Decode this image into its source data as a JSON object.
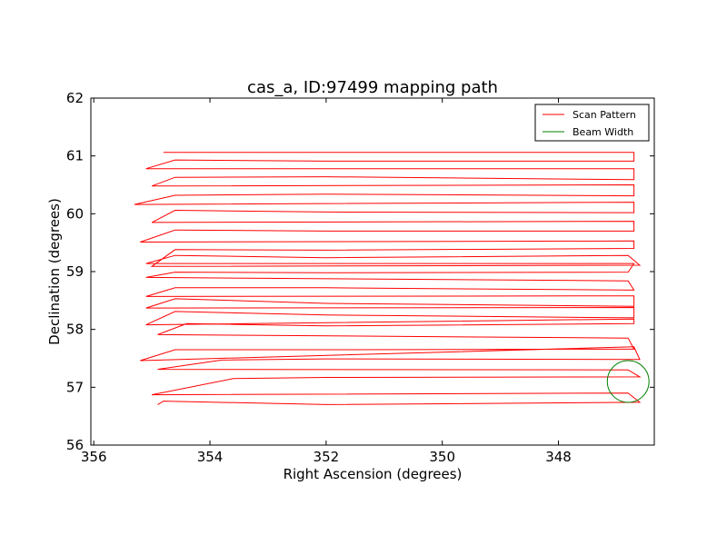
{
  "chart_data": {
    "type": "line",
    "title": "cas_a, ID:97499 mapping path",
    "xlabel": "Right Ascension (degrees)",
    "ylabel": "Declination (degrees)",
    "xlim": [
      356.05,
      346.35
    ],
    "ylim": [
      56,
      62
    ],
    "x_ticks": [
      "356",
      "354",
      "352",
      "350",
      "348"
    ],
    "x_tick_values": [
      356,
      354,
      352,
      350,
      348
    ],
    "y_ticks": [
      "56",
      "57",
      "58",
      "59",
      "60",
      "61",
      "62"
    ],
    "y_tick_values": [
      56,
      57,
      58,
      59,
      60,
      61,
      62
    ],
    "grid": false,
    "legend_position": "top-right",
    "legend": [
      {
        "label": "Scan Pattern",
        "color": "#ff0000"
      },
      {
        "label": "Beam Width",
        "color": "#008000"
      }
    ],
    "series": [
      {
        "name": "Scan Pattern",
        "color": "#ff0000",
        "points": [
          [
            354.9,
            56.7
          ],
          [
            354.8,
            56.76
          ],
          [
            352.0,
            56.7
          ],
          [
            346.6,
            56.74
          ],
          [
            346.8,
            56.9
          ],
          [
            355.0,
            56.87
          ],
          [
            353.6,
            57.15
          ],
          [
            352.0,
            57.17
          ],
          [
            346.6,
            57.18
          ],
          [
            346.8,
            57.3
          ],
          [
            354.9,
            57.31
          ],
          [
            353.8,
            57.47
          ],
          [
            352.0,
            57.49
          ],
          [
            346.6,
            57.48
          ],
          [
            346.7,
            57.7
          ],
          [
            355.2,
            57.46
          ],
          [
            354.6,
            57.65
          ],
          [
            352.0,
            57.65
          ],
          [
            346.7,
            57.66
          ],
          [
            346.8,
            57.85
          ],
          [
            354.9,
            57.91
          ],
          [
            354.4,
            58.1
          ],
          [
            352.0,
            58.06
          ],
          [
            346.7,
            58.1
          ],
          [
            346.7,
            58.18
          ],
          [
            355.1,
            58.08
          ],
          [
            354.6,
            58.31
          ],
          [
            352.0,
            58.25
          ],
          [
            346.7,
            58.2
          ],
          [
            346.7,
            58.38
          ],
          [
            355.1,
            58.37
          ],
          [
            354.6,
            58.53
          ],
          [
            352.0,
            58.45
          ],
          [
            346.7,
            58.4
          ],
          [
            346.7,
            58.58
          ],
          [
            355.1,
            58.57
          ],
          [
            354.6,
            58.72
          ],
          [
            352.0,
            58.72
          ],
          [
            346.7,
            58.68
          ],
          [
            346.8,
            58.84
          ],
          [
            355.1,
            58.9
          ],
          [
            354.6,
            58.99
          ],
          [
            352.0,
            58.98
          ],
          [
            346.8,
            58.99
          ],
          [
            346.7,
            59.14
          ],
          [
            355.1,
            59.14
          ],
          [
            354.6,
            59.28
          ],
          [
            352.0,
            59.24
          ],
          [
            346.8,
            59.28
          ],
          [
            346.6,
            59.11
          ],
          [
            355.0,
            59.09
          ],
          [
            354.6,
            59.38
          ],
          [
            352.0,
            59.37
          ],
          [
            346.7,
            59.4
          ],
          [
            346.7,
            59.53
          ],
          [
            355.2,
            59.51
          ],
          [
            354.6,
            59.72
          ],
          [
            352.0,
            59.7
          ],
          [
            346.7,
            59.7
          ],
          [
            346.7,
            59.87
          ],
          [
            355.0,
            59.85
          ],
          [
            354.6,
            60.06
          ],
          [
            352.0,
            60.03
          ],
          [
            346.7,
            60.02
          ],
          [
            346.7,
            60.2
          ],
          [
            355.3,
            60.16
          ],
          [
            354.6,
            60.32
          ],
          [
            352.0,
            60.34
          ],
          [
            346.7,
            60.31
          ],
          [
            346.7,
            60.5
          ],
          [
            355.0,
            60.48
          ],
          [
            354.6,
            60.63
          ],
          [
            352.0,
            60.64
          ],
          [
            346.7,
            60.59
          ],
          [
            346.7,
            60.78
          ],
          [
            355.1,
            60.78
          ],
          [
            354.6,
            60.93
          ],
          [
            352.0,
            60.91
          ],
          [
            346.7,
            60.91
          ],
          [
            346.7,
            61.06
          ],
          [
            354.8,
            61.06
          ]
        ]
      }
    ],
    "beam_circle": {
      "name": "Beam Width",
      "color": "#008000",
      "center": [
        346.8,
        57.1
      ],
      "radius_deg": 0.36
    }
  }
}
